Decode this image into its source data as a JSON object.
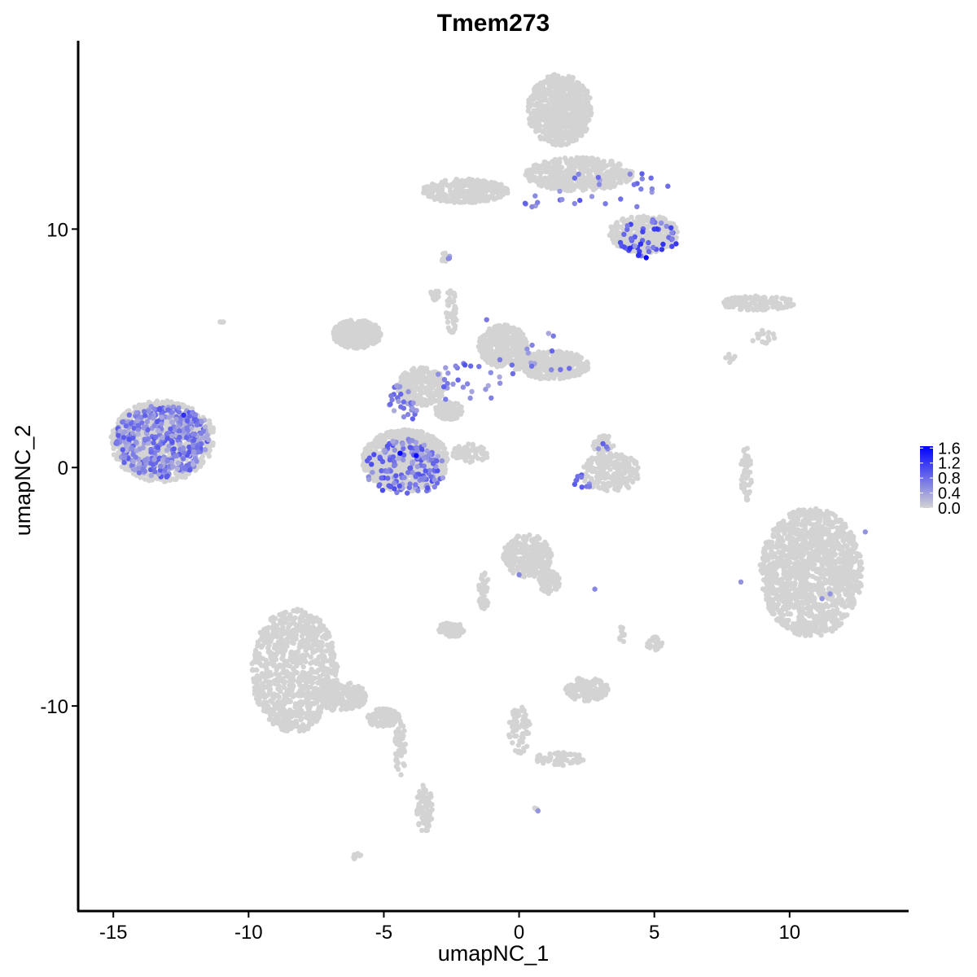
{
  "chart_data": {
    "type": "scatter",
    "title": "Tmem273",
    "xlabel": "umapNC_1",
    "ylabel": "umapNC_2",
    "xlim": [
      -16.3,
      14.4
    ],
    "ylim": [
      -18.6,
      17.9
    ],
    "x_ticks": [
      -15,
      -10,
      -5,
      0,
      5,
      10
    ],
    "x_tick_labels": [
      "-15",
      "-10",
      "-5",
      "0",
      "5",
      "10"
    ],
    "y_ticks": [
      -10,
      0,
      10
    ],
    "y_tick_labels": [
      "-10",
      "0",
      "10"
    ],
    "grid": false,
    "legend_position": "right",
    "color_scale": {
      "low_color": "#d3d3d3",
      "high_color": "#0000ff",
      "min": 0.0,
      "max": 1.65,
      "breaks": [
        "0.0",
        "0.4",
        "0.8",
        "1.2",
        "1.6"
      ]
    },
    "background_color": "#d3d3d3",
    "background_clusters": [
      {
        "cx": -13.2,
        "cy": 1.1,
        "rx": 1.9,
        "ry": 1.7,
        "n": 800
      },
      {
        "cx": -11.9,
        "cy": 1.6,
        "rx": 0.6,
        "ry": 0.6,
        "n": 80
      },
      {
        "cx": -4.2,
        "cy": 0.3,
        "rx": 1.6,
        "ry": 1.3,
        "n": 900
      },
      {
        "cx": -6.0,
        "cy": 5.6,
        "rx": 0.9,
        "ry": 0.6,
        "n": 300
      },
      {
        "cx": -3.6,
        "cy": 3.4,
        "rx": 0.9,
        "ry": 0.8,
        "n": 250
      },
      {
        "cx": -0.6,
        "cy": 5.1,
        "rx": 0.9,
        "ry": 0.9,
        "n": 350
      },
      {
        "cx": 1.2,
        "cy": 4.3,
        "rx": 1.4,
        "ry": 0.6,
        "n": 400
      },
      {
        "cx": -2.6,
        "cy": 2.4,
        "rx": 0.5,
        "ry": 0.4,
        "n": 120
      },
      {
        "cx": 1.5,
        "cy": 15.0,
        "rx": 1.2,
        "ry": 1.5,
        "n": 650
      },
      {
        "cx": 2.2,
        "cy": 12.3,
        "rx": 2.0,
        "ry": 0.7,
        "n": 450
      },
      {
        "cx": -2.0,
        "cy": 11.6,
        "rx": 1.6,
        "ry": 0.5,
        "n": 300
      },
      {
        "cx": 4.6,
        "cy": 9.8,
        "rx": 1.3,
        "ry": 0.8,
        "n": 350
      },
      {
        "cx": 8.8,
        "cy": 6.9,
        "rx": 1.4,
        "ry": 0.3,
        "n": 150
      },
      {
        "cx": 3.4,
        "cy": -0.2,
        "rx": 1.1,
        "ry": 0.8,
        "n": 220
      },
      {
        "cx": 10.8,
        "cy": -4.4,
        "rx": 1.9,
        "ry": 2.7,
        "n": 1300
      },
      {
        "cx": 8.4,
        "cy": -0.2,
        "rx": 0.2,
        "ry": 1.2,
        "n": 50
      },
      {
        "cx": -8.3,
        "cy": -8.5,
        "rx": 1.6,
        "ry": 2.6,
        "n": 800
      },
      {
        "cx": -6.6,
        "cy": -9.6,
        "rx": 1.0,
        "ry": 0.6,
        "n": 180
      },
      {
        "cx": -5.0,
        "cy": -10.5,
        "rx": 0.6,
        "ry": 0.4,
        "n": 100
      },
      {
        "cx": -3.5,
        "cy": -14.3,
        "rx": 0.3,
        "ry": 1.0,
        "n": 90
      },
      {
        "cx": -4.4,
        "cy": -11.8,
        "rx": 0.2,
        "ry": 1.2,
        "n": 50
      },
      {
        "cx": 0.3,
        "cy": -3.7,
        "rx": 0.9,
        "ry": 0.9,
        "n": 280
      },
      {
        "cx": 1.1,
        "cy": -4.8,
        "rx": 0.4,
        "ry": 0.5,
        "n": 70
      },
      {
        "cx": -1.3,
        "cy": -5.2,
        "rx": 0.2,
        "ry": 0.8,
        "n": 40
      },
      {
        "cx": -2.5,
        "cy": -6.8,
        "rx": 0.5,
        "ry": 0.3,
        "n": 70
      },
      {
        "cx": 2.5,
        "cy": -9.3,
        "rx": 0.8,
        "ry": 0.5,
        "n": 150
      },
      {
        "cx": 0.0,
        "cy": -11.0,
        "rx": 0.4,
        "ry": 1.0,
        "n": 70
      },
      {
        "cx": 1.5,
        "cy": -12.2,
        "rx": 0.9,
        "ry": 0.3,
        "n": 60
      },
      {
        "cx": 5.0,
        "cy": -7.4,
        "rx": 0.3,
        "ry": 0.3,
        "n": 25
      },
      {
        "cx": 3.8,
        "cy": -7.0,
        "rx": 0.1,
        "ry": 0.4,
        "n": 12
      },
      {
        "cx": -1.8,
        "cy": 0.6,
        "rx": 0.7,
        "ry": 0.4,
        "n": 60
      },
      {
        "cx": -2.5,
        "cy": 6.6,
        "rx": 0.2,
        "ry": 1.0,
        "n": 40
      },
      {
        "cx": -3.1,
        "cy": 7.3,
        "rx": 0.2,
        "ry": 0.3,
        "n": 15
      },
      {
        "cx": 9.0,
        "cy": 5.5,
        "rx": 0.5,
        "ry": 0.3,
        "n": 15
      },
      {
        "cx": 7.8,
        "cy": 4.6,
        "rx": 0.2,
        "ry": 0.2,
        "n": 8
      },
      {
        "cx": -11.0,
        "cy": 6.1,
        "rx": 0.1,
        "ry": 0.1,
        "n": 3
      },
      {
        "cx": -6.0,
        "cy": -16.3,
        "rx": 0.2,
        "ry": 0.15,
        "n": 8
      },
      {
        "cx": -2.7,
        "cy": 8.8,
        "rx": 0.2,
        "ry": 0.2,
        "n": 10
      },
      {
        "cx": 0.6,
        "cy": -14.3,
        "rx": 0.1,
        "ry": 0.1,
        "n": 3
      },
      {
        "cx": 3.1,
        "cy": 0.8,
        "rx": 0.4,
        "ry": 0.6,
        "n": 50
      }
    ],
    "expressing_clusters": [
      {
        "cx": -13.2,
        "cy": 1.1,
        "rx": 1.8,
        "ry": 1.5,
        "n": 360,
        "vmin": 0.25,
        "vmax": 1.0
      },
      {
        "cx": -12.2,
        "cy": 1.5,
        "rx": 0.7,
        "ry": 1.0,
        "n": 40,
        "vmin": 0.25,
        "vmax": 0.9
      },
      {
        "cx": -4.2,
        "cy": 0.0,
        "rx": 1.5,
        "ry": 1.2,
        "n": 150,
        "vmin": 0.3,
        "vmax": 1.1
      },
      {
        "cx": -4.3,
        "cy": 2.6,
        "rx": 0.6,
        "ry": 0.9,
        "n": 30,
        "vmin": 0.3,
        "vmax": 0.9
      },
      {
        "cx": -2.0,
        "cy": 3.5,
        "rx": 1.4,
        "ry": 1.0,
        "n": 25,
        "vmin": 0.3,
        "vmax": 0.9
      },
      {
        "cx": 0.5,
        "cy": 4.8,
        "rx": 1.8,
        "ry": 1.0,
        "n": 15,
        "vmin": 0.3,
        "vmax": 0.9
      },
      {
        "cx": 4.8,
        "cy": 9.6,
        "rx": 1.1,
        "ry": 0.8,
        "n": 45,
        "vmin": 0.4,
        "vmax": 1.3
      },
      {
        "cx": 3.5,
        "cy": 11.6,
        "rx": 2.0,
        "ry": 1.0,
        "n": 20,
        "vmin": 0.3,
        "vmax": 1.0
      },
      {
        "cx": 0.3,
        "cy": 11.2,
        "rx": 1.5,
        "ry": 0.3,
        "n": 8,
        "vmin": 0.3,
        "vmax": 0.9
      },
      {
        "cx": 2.4,
        "cy": -0.6,
        "rx": 0.4,
        "ry": 0.3,
        "n": 8,
        "vmin": 0.4,
        "vmax": 1.0
      },
      {
        "cx": 3.1,
        "cy": 0.8,
        "rx": 0.2,
        "ry": 0.2,
        "n": 3,
        "vmin": 0.3,
        "vmax": 0.8
      },
      {
        "cx": -2.6,
        "cy": 8.8,
        "rx": 0.1,
        "ry": 0.1,
        "n": 3,
        "vmin": 0.3,
        "vmax": 0.8
      }
    ],
    "expressing_points": [
      {
        "x": 4.7,
        "y": 8.8,
        "value": 1.6
      },
      {
        "x": -4.4,
        "y": 0.6,
        "value": 1.6
      },
      {
        "x": -3.8,
        "y": 0.5,
        "value": 1.55
      },
      {
        "x": 4.1,
        "y": 9.2,
        "value": 1.3
      },
      {
        "x": 5.0,
        "y": 10.0,
        "value": 1.2
      },
      {
        "x": -12.4,
        "y": 2.2,
        "value": 1.3
      },
      {
        "x": 3.1,
        "y": 1.0,
        "value": 0.9
      },
      {
        "x": 0.0,
        "y": -4.5,
        "value": 0.6
      },
      {
        "x": 2.8,
        "y": -5.1,
        "value": 0.6
      },
      {
        "x": 11.5,
        "y": -5.3,
        "value": 0.5
      },
      {
        "x": 11.2,
        "y": -5.5,
        "value": 0.5
      },
      {
        "x": 12.8,
        "y": -2.7,
        "value": 0.5
      },
      {
        "x": 8.2,
        "y": -4.8,
        "value": 0.5
      },
      {
        "x": 0.7,
        "y": -14.4,
        "value": 0.5
      },
      {
        "x": 2.6,
        "y": -0.8,
        "value": 0.7
      },
      {
        "x": 2.3,
        "y": -0.4,
        "value": 0.7
      },
      {
        "x": 5.5,
        "y": 11.8,
        "value": 0.8
      },
      {
        "x": 2.2,
        "y": 12.3,
        "value": 0.6
      },
      {
        "x": -1.2,
        "y": 6.2,
        "value": 0.7
      },
      {
        "x": -2.0,
        "y": 4.3,
        "value": 1.0
      }
    ]
  }
}
